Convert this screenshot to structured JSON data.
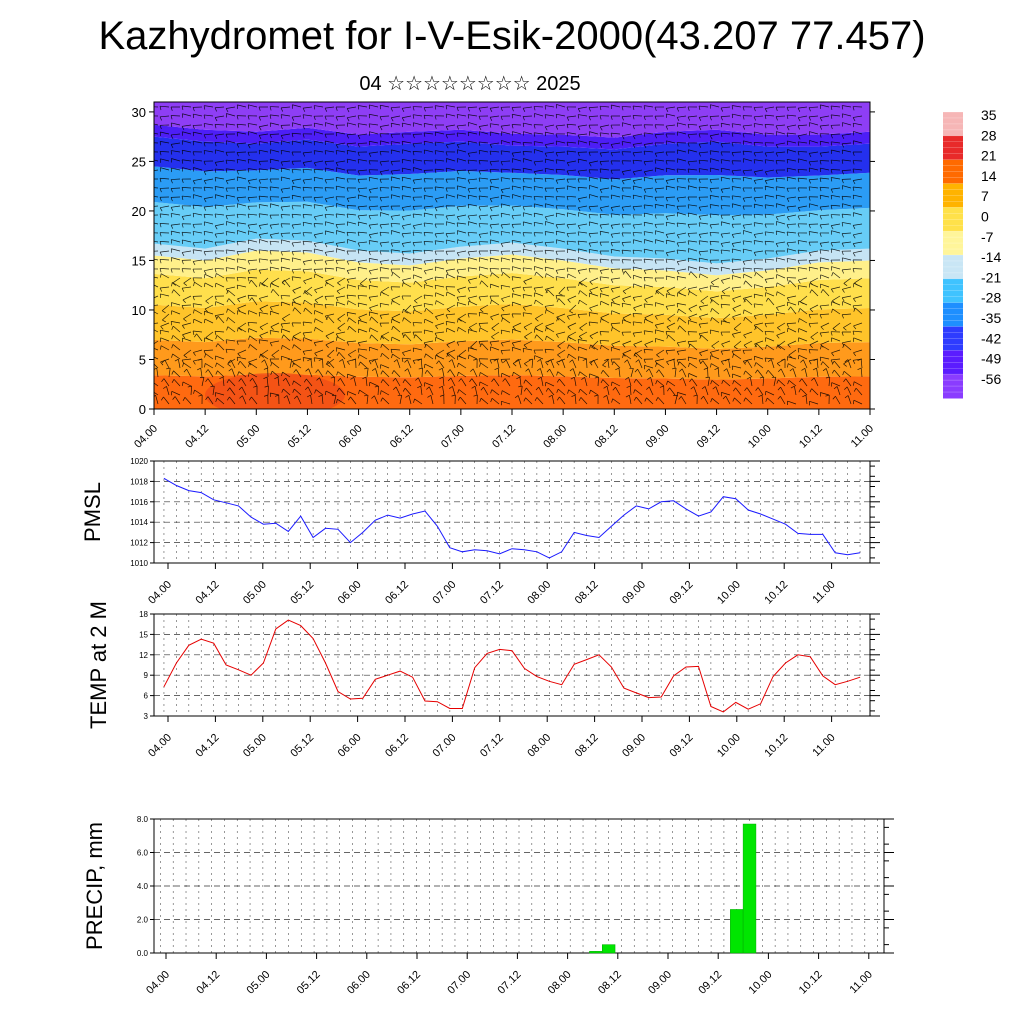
{
  "page": {
    "title": "Kazhydromet for I-V-Esik-2000(43.207 77.457)",
    "subtitle": "04 ☆☆☆☆☆☆☆☆ 2025"
  },
  "x_ticks": [
    "04.00",
    "04.12",
    "05.00",
    "05.12",
    "06.00",
    "06.12",
    "07.00",
    "07.12",
    "08.00",
    "08.12",
    "09.00",
    "09.12",
    "10.00",
    "10.12",
    "11.00"
  ],
  "chart_data": [
    {
      "type": "heatmap",
      "name": "cross-section",
      "y_ticks": [
        "0",
        "5",
        "10",
        "15",
        "20",
        "25",
        "30"
      ],
      "ylim": [
        0,
        31
      ],
      "colorbar": {
        "labels": [
          "35",
          "28",
          "21",
          "14",
          "7",
          "0",
          "-7",
          "-14",
          "-21",
          "-28",
          "-35",
          "-42",
          "-49",
          "-56"
        ],
        "colors": [
          "#f6b6b6",
          "#e82a2a",
          "#ff6a00",
          "#ffb300",
          "#ffe14a",
          "#fff59a",
          "#c9e6f5",
          "#3fc3ff",
          "#1e8fff",
          "#2e3cff",
          "#5b1cff",
          "#8a3cff"
        ]
      },
      "isotherm_0_height": [
        15.5,
        15.0,
        16.0,
        15.8,
        14.8,
        14.5,
        15.2,
        15.6,
        15.0,
        14.2,
        14.0,
        13.5,
        14.0,
        14.8,
        15.0
      ],
      "isotherm_minus56_height": [
        27.5,
        27.0,
        26.8,
        27.2,
        26.5,
        26.8,
        27.0,
        26.6,
        26.5,
        26.2,
        26.8,
        27.0,
        26.5,
        26.5,
        26.8
      ]
    },
    {
      "type": "line",
      "ylabel": "PMSL",
      "ylim": [
        1010,
        1020
      ],
      "y_ticks": [
        "1010",
        "1012",
        "1014",
        "1016",
        "1018",
        "1020"
      ],
      "color": "#1a1aff",
      "values": [
        1018.3,
        1017.6,
        1017.1,
        1016.9,
        1016.2,
        1015.9,
        1015.6,
        1014.5,
        1013.8,
        1013.9,
        1013.1,
        1014.6,
        1012.5,
        1013.4,
        1013.3,
        1012.0,
        1013.0,
        1014.2,
        1014.7,
        1014.4,
        1014.8,
        1015.1,
        1013.6,
        1011.5,
        1011.1,
        1011.3,
        1011.2,
        1010.9,
        1011.4,
        1011.3,
        1011.1,
        1010.5,
        1011.1,
        1013.0,
        1012.7,
        1012.5,
        1013.6,
        1014.7,
        1015.6,
        1015.3,
        1016.0,
        1016.1,
        1015.3,
        1014.6,
        1015.0,
        1016.5,
        1016.3,
        1015.2,
        1014.8,
        1014.3,
        1013.8,
        1012.9,
        1012.8,
        1012.8,
        1011.0,
        1010.8,
        1011.0
      ]
    },
    {
      "type": "line",
      "ylabel": "TEMP at 2 M",
      "ylim": [
        3,
        18
      ],
      "y_ticks": [
        "3",
        "6",
        "9",
        "12",
        "15",
        "18"
      ],
      "color": "#e60000",
      "values": [
        7.3,
        10.8,
        13.4,
        14.3,
        13.7,
        10.5,
        9.8,
        9.0,
        10.8,
        15.8,
        17.1,
        16.3,
        14.4,
        10.8,
        6.6,
        5.5,
        5.6,
        8.4,
        9.0,
        9.6,
        8.7,
        5.2,
        5.1,
        4.1,
        4.1,
        10.1,
        12.2,
        12.8,
        12.6,
        10.0,
        8.8,
        8.1,
        7.6,
        10.6,
        11.3,
        12.0,
        10.2,
        7.1,
        6.4,
        5.7,
        5.8,
        8.9,
        10.2,
        10.3,
        4.4,
        3.6,
        5.0,
        4.0,
        4.8,
        8.8,
        10.8,
        12.0,
        11.7,
        8.9,
        7.6,
        8.1,
        8.7
      ]
    },
    {
      "type": "bar",
      "ylabel": "PRECIP, mm",
      "ylim": [
        0,
        8
      ],
      "y_ticks": [
        "0.0",
        "2.0",
        "4.0",
        "6.0",
        "8.0"
      ],
      "color": "#00e600",
      "values": [
        0,
        0,
        0,
        0,
        0,
        0,
        0,
        0,
        0,
        0,
        0,
        0,
        0,
        0,
        0,
        0,
        0,
        0,
        0,
        0,
        0,
        0,
        0,
        0,
        0,
        0,
        0,
        0,
        0,
        0,
        0,
        0,
        0,
        0,
        0.1,
        0.5,
        0,
        0,
        0,
        0,
        0,
        0,
        0,
        0,
        0,
        2.6,
        7.7,
        0,
        0,
        0,
        0,
        0,
        0,
        0,
        0,
        0,
        0
      ]
    }
  ]
}
